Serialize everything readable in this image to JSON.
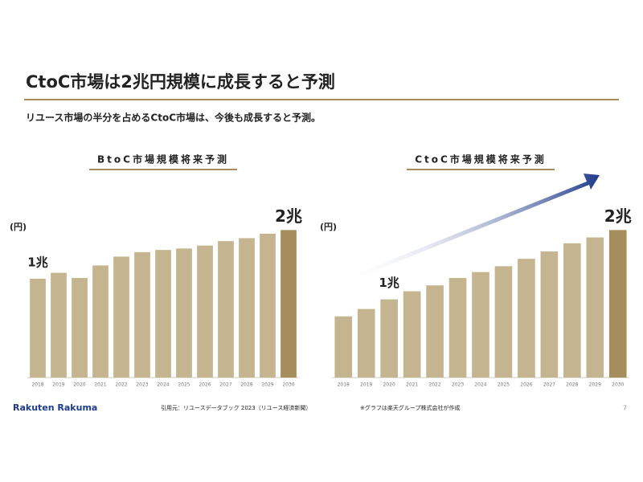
{
  "header": {
    "title": "CtoC市場は2兆円規模に成長すると予測",
    "subtitle": "リユース市場の半分を占めるCtoC市場は、今後も成長すると予測。"
  },
  "chart_data": [
    {
      "type": "bar",
      "title": "BtoC市場規模将来予測",
      "unit": "(円)",
      "categories": [
        "2018",
        "2019",
        "2020",
        "2021",
        "2022",
        "2023",
        "2024",
        "2025",
        "2026",
        "2027",
        "2028",
        "2029",
        "2030"
      ],
      "values": [
        1.34,
        1.42,
        1.35,
        1.52,
        1.64,
        1.7,
        1.73,
        1.75,
        1.79,
        1.85,
        1.89,
        1.95,
        2.0
      ],
      "value_labels": [
        "1兆",
        null,
        null,
        null,
        null,
        null,
        null,
        null,
        null,
        null,
        null,
        null,
        "2兆"
      ],
      "colors": [
        "#c4b590",
        "#c4b590",
        "#c4b590",
        "#c4b590",
        "#c4b590",
        "#c4b590",
        "#c4b590",
        "#c4b590",
        "#c4b590",
        "#c4b590",
        "#c4b590",
        "#c4b590",
        "#a68e5c"
      ],
      "ylim": [
        0,
        2.2
      ]
    },
    {
      "type": "bar",
      "title": "CtoC市場規模将来予測",
      "unit": "(円)",
      "categories": [
        "2018",
        "2019",
        "2020",
        "2021",
        "2022",
        "2023",
        "2024",
        "2025",
        "2026",
        "2027",
        "2028",
        "2029",
        "2030"
      ],
      "values": [
        0.83,
        0.93,
        1.06,
        1.17,
        1.25,
        1.35,
        1.43,
        1.51,
        1.61,
        1.71,
        1.82,
        1.9,
        2.0
      ],
      "value_labels": [
        null,
        null,
        "1兆",
        null,
        null,
        null,
        null,
        null,
        null,
        null,
        null,
        null,
        "2兆"
      ],
      "colors": [
        "#c4b590",
        "#c4b590",
        "#c4b590",
        "#c4b590",
        "#c4b590",
        "#c4b590",
        "#c4b590",
        "#c4b590",
        "#c4b590",
        "#c4b590",
        "#c4b590",
        "#c4b590",
        "#a68e5c"
      ],
      "ylim": [
        0,
        2.2
      ]
    }
  ],
  "footer": {
    "logo": "Rakuten Rakuma",
    "source": "引用元：リユースデータブック 2023（リユース経済新聞）",
    "note": "※グラフは楽天グループ株式会社が作成",
    "page": "7"
  }
}
